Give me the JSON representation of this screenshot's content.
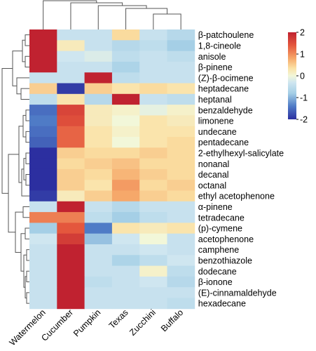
{
  "chart_data": {
    "type": "heatmap",
    "title": "",
    "xlabel": "",
    "ylabel": "",
    "columns": [
      "Watermelon",
      "Cucumber",
      "Pumpkin",
      "Texas",
      "Zucchini",
      "Buffalo"
    ],
    "rows": [
      "β-patchoulene",
      "1,8-cineole",
      "anisole",
      "β-pinene",
      "(Z)-β-ocimene",
      "heptadecane",
      "heptanal",
      "benzaldehyde",
      "limonene",
      "undecane",
      "pentadecane",
      "2-ethylhexyl-salicylate",
      "nonanal",
      "decanal",
      "octanal",
      "ethyl acetophenone",
      "α-pinene",
      "tetradecane",
      "(p)-cymene",
      "acetophenone",
      "camphene",
      "benzothiazole",
      "dodecane",
      "β-ionone",
      "(E)-cinnamaldehyde",
      "hexadecane"
    ],
    "values": [
      [
        2.0,
        -0.4,
        -0.4,
        0.4,
        -0.4,
        -0.6
      ],
      [
        2.0,
        0.2,
        -0.4,
        -0.6,
        -0.5,
        -0.8
      ],
      [
        2.0,
        -0.3,
        -0.2,
        -0.5,
        -0.4,
        -0.5
      ],
      [
        2.0,
        -0.4,
        -0.4,
        -0.7,
        -0.4,
        -0.4
      ],
      [
        -0.4,
        -0.4,
        2.0,
        -0.5,
        -0.4,
        -0.4
      ],
      [
        0.5,
        -1.9,
        0.5,
        0.3,
        0.4,
        0.3
      ],
      [
        -0.5,
        0.3,
        -0.6,
        2.0,
        -0.4,
        -0.5
      ],
      [
        -1.5,
        1.6,
        0.2,
        0.1,
        -0.1,
        0.1
      ],
      [
        -1.4,
        1.5,
        0.2,
        0.0,
        0.3,
        0.2
      ],
      [
        -1.5,
        1.3,
        0.3,
        0.1,
        0.3,
        0.3
      ],
      [
        -1.6,
        1.3,
        0.3,
        0.0,
        0.3,
        0.4
      ],
      [
        -2.0,
        0.5,
        0.4,
        0.4,
        0.5,
        0.4
      ],
      [
        -2.0,
        0.4,
        0.5,
        0.6,
        0.4,
        0.4
      ],
      [
        -2.0,
        0.5,
        0.4,
        0.7,
        0.5,
        0.4
      ],
      [
        -2.0,
        0.5,
        0.3,
        0.9,
        0.4,
        0.5
      ],
      [
        -1.9,
        0.2,
        0.5,
        0.8,
        0.5,
        0.4
      ],
      [
        -0.4,
        2.0,
        -0.4,
        -0.6,
        -0.4,
        -0.4
      ],
      [
        1.1,
        1.1,
        -0.5,
        -0.8,
        -0.5,
        -0.4
      ],
      [
        -0.8,
        1.4,
        -1.4,
        0.3,
        0.2,
        0.3
      ],
      [
        -0.3,
        1.7,
        -0.9,
        -0.3,
        0.0,
        -0.4
      ],
      [
        -0.4,
        2.0,
        -0.4,
        -0.4,
        -0.3,
        -0.4
      ],
      [
        -0.4,
        2.0,
        -0.4,
        -0.7,
        -0.5,
        -0.3
      ],
      [
        -0.4,
        2.0,
        -0.4,
        -0.4,
        0.1,
        -0.5
      ],
      [
        -0.4,
        2.0,
        -0.5,
        -0.4,
        -0.3,
        -0.6
      ],
      [
        -0.4,
        2.0,
        -0.4,
        -0.4,
        -0.4,
        -0.4
      ],
      [
        -0.4,
        2.0,
        -0.4,
        -0.4,
        -0.4,
        -0.5
      ]
    ],
    "colorbar": {
      "range": [
        -2,
        2
      ],
      "ticks": [
        "2",
        "1",
        "0",
        "-1",
        "-2"
      ],
      "colors": [
        "#2c2fa0",
        "#f2f7d9",
        "#c02230"
      ]
    },
    "legend_placement": "top-right",
    "dendrograms": [
      "left (rows)",
      "top (columns)"
    ]
  }
}
